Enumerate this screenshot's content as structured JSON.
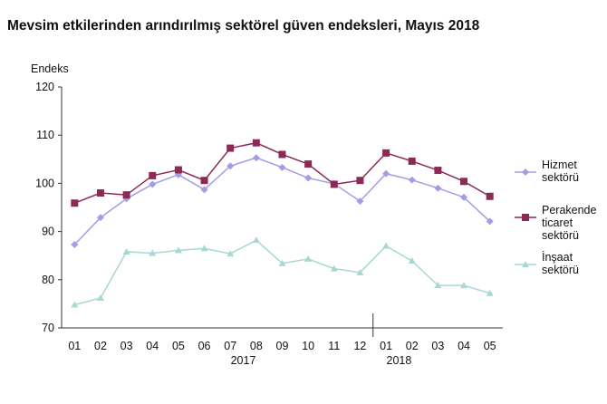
{
  "chart_data": {
    "type": "line",
    "title": "Mevsim etkilerinden arındırılmış sektörel güven endeksleri, Mayıs 2018",
    "ylabel": "Endeks",
    "ylim": [
      70,
      120
    ],
    "yticks": [
      70,
      80,
      90,
      100,
      110,
      120
    ],
    "categories": [
      "01",
      "02",
      "03",
      "04",
      "05",
      "06",
      "07",
      "08",
      "09",
      "10",
      "11",
      "12",
      "01",
      "02",
      "03",
      "04",
      "05"
    ],
    "year_labels": [
      {
        "label": "2017",
        "between": [
          6,
          7
        ]
      },
      {
        "label": "2018",
        "between": [
          12,
          13
        ]
      }
    ],
    "legend_position": "right",
    "grid": false,
    "series": [
      {
        "name": "Hizmet sektörü",
        "legend_lines": [
          "Hizmet",
          "sektörü"
        ],
        "color": "#a59be6",
        "marker": "diamond",
        "values": [
          87.3,
          92.9,
          96.8,
          99.8,
          101.8,
          98.7,
          103.6,
          105.3,
          103.3,
          101.1,
          99.9,
          96.3,
          102.0,
          100.7,
          99.0,
          97.1,
          92.1
        ]
      },
      {
        "name": "Perakende ticaret sektörü",
        "legend_lines": [
          "Perakende",
          "ticaret",
          "sektörü"
        ],
        "color": "#8b2a55",
        "marker": "square",
        "values": [
          95.9,
          98.0,
          97.6,
          101.6,
          102.8,
          100.6,
          107.3,
          108.4,
          106.0,
          104.0,
          99.8,
          100.6,
          106.3,
          104.6,
          102.7,
          100.4,
          97.3
        ]
      },
      {
        "name": "İnşaat sektörü",
        "legend_lines": [
          "İnşaat",
          "sektörü"
        ],
        "color": "#a8d8d4",
        "marker": "triangle",
        "values": [
          74.8,
          76.2,
          85.8,
          85.5,
          86.1,
          86.5,
          85.4,
          88.2,
          83.4,
          84.3,
          82.3,
          81.5,
          87.0,
          83.9,
          78.8,
          78.8,
          77.2
        ]
      }
    ]
  }
}
